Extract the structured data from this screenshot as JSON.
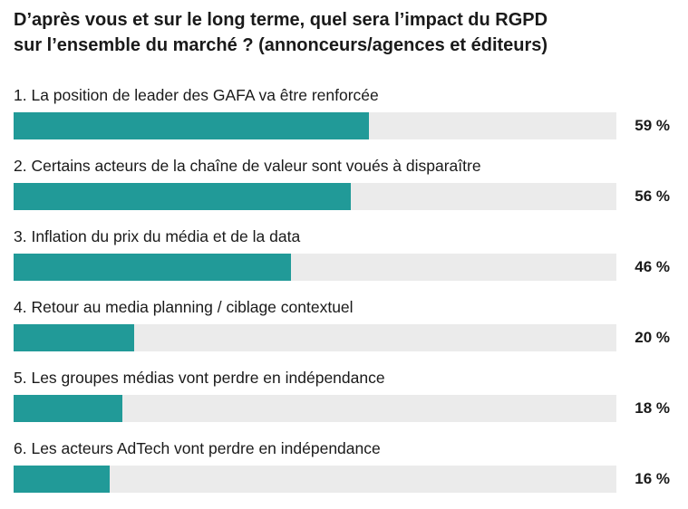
{
  "chart_data": {
    "type": "bar",
    "orientation": "horizontal",
    "title": "D’après vous et sur le long terme, quel sera l’impact du RGPD sur l’ensemble du marché ? (annonceurs/agences et éditeurs)",
    "title_lines": [
      "D’après vous et sur le long terme, quel sera l’impact du RGPD",
      "sur l’ensemble du marché ? (annonceurs/agences et éditeurs)"
    ],
    "categories": [
      "1. La position de leader des GAFA va être renforcée",
      "2. Certains acteurs de la chaîne de valeur sont voués à disparaître",
      "3. Inflation du prix du média et de la data",
      "4. Retour au media planning / ciblage contextuel",
      "5. Les groupes médias vont perdre en indépendance",
      "6. Les acteurs AdTech vont perdre en indépendance"
    ],
    "values": [
      59,
      56,
      46,
      20,
      18,
      16
    ],
    "value_labels": [
      "59 %",
      "56 %",
      "46 %",
      "20 %",
      "18 %",
      "16 %"
    ],
    "xlim": [
      0,
      100
    ],
    "unit": "%",
    "colors": {
      "bar": "#219a98",
      "track": "#ebebeb"
    }
  }
}
